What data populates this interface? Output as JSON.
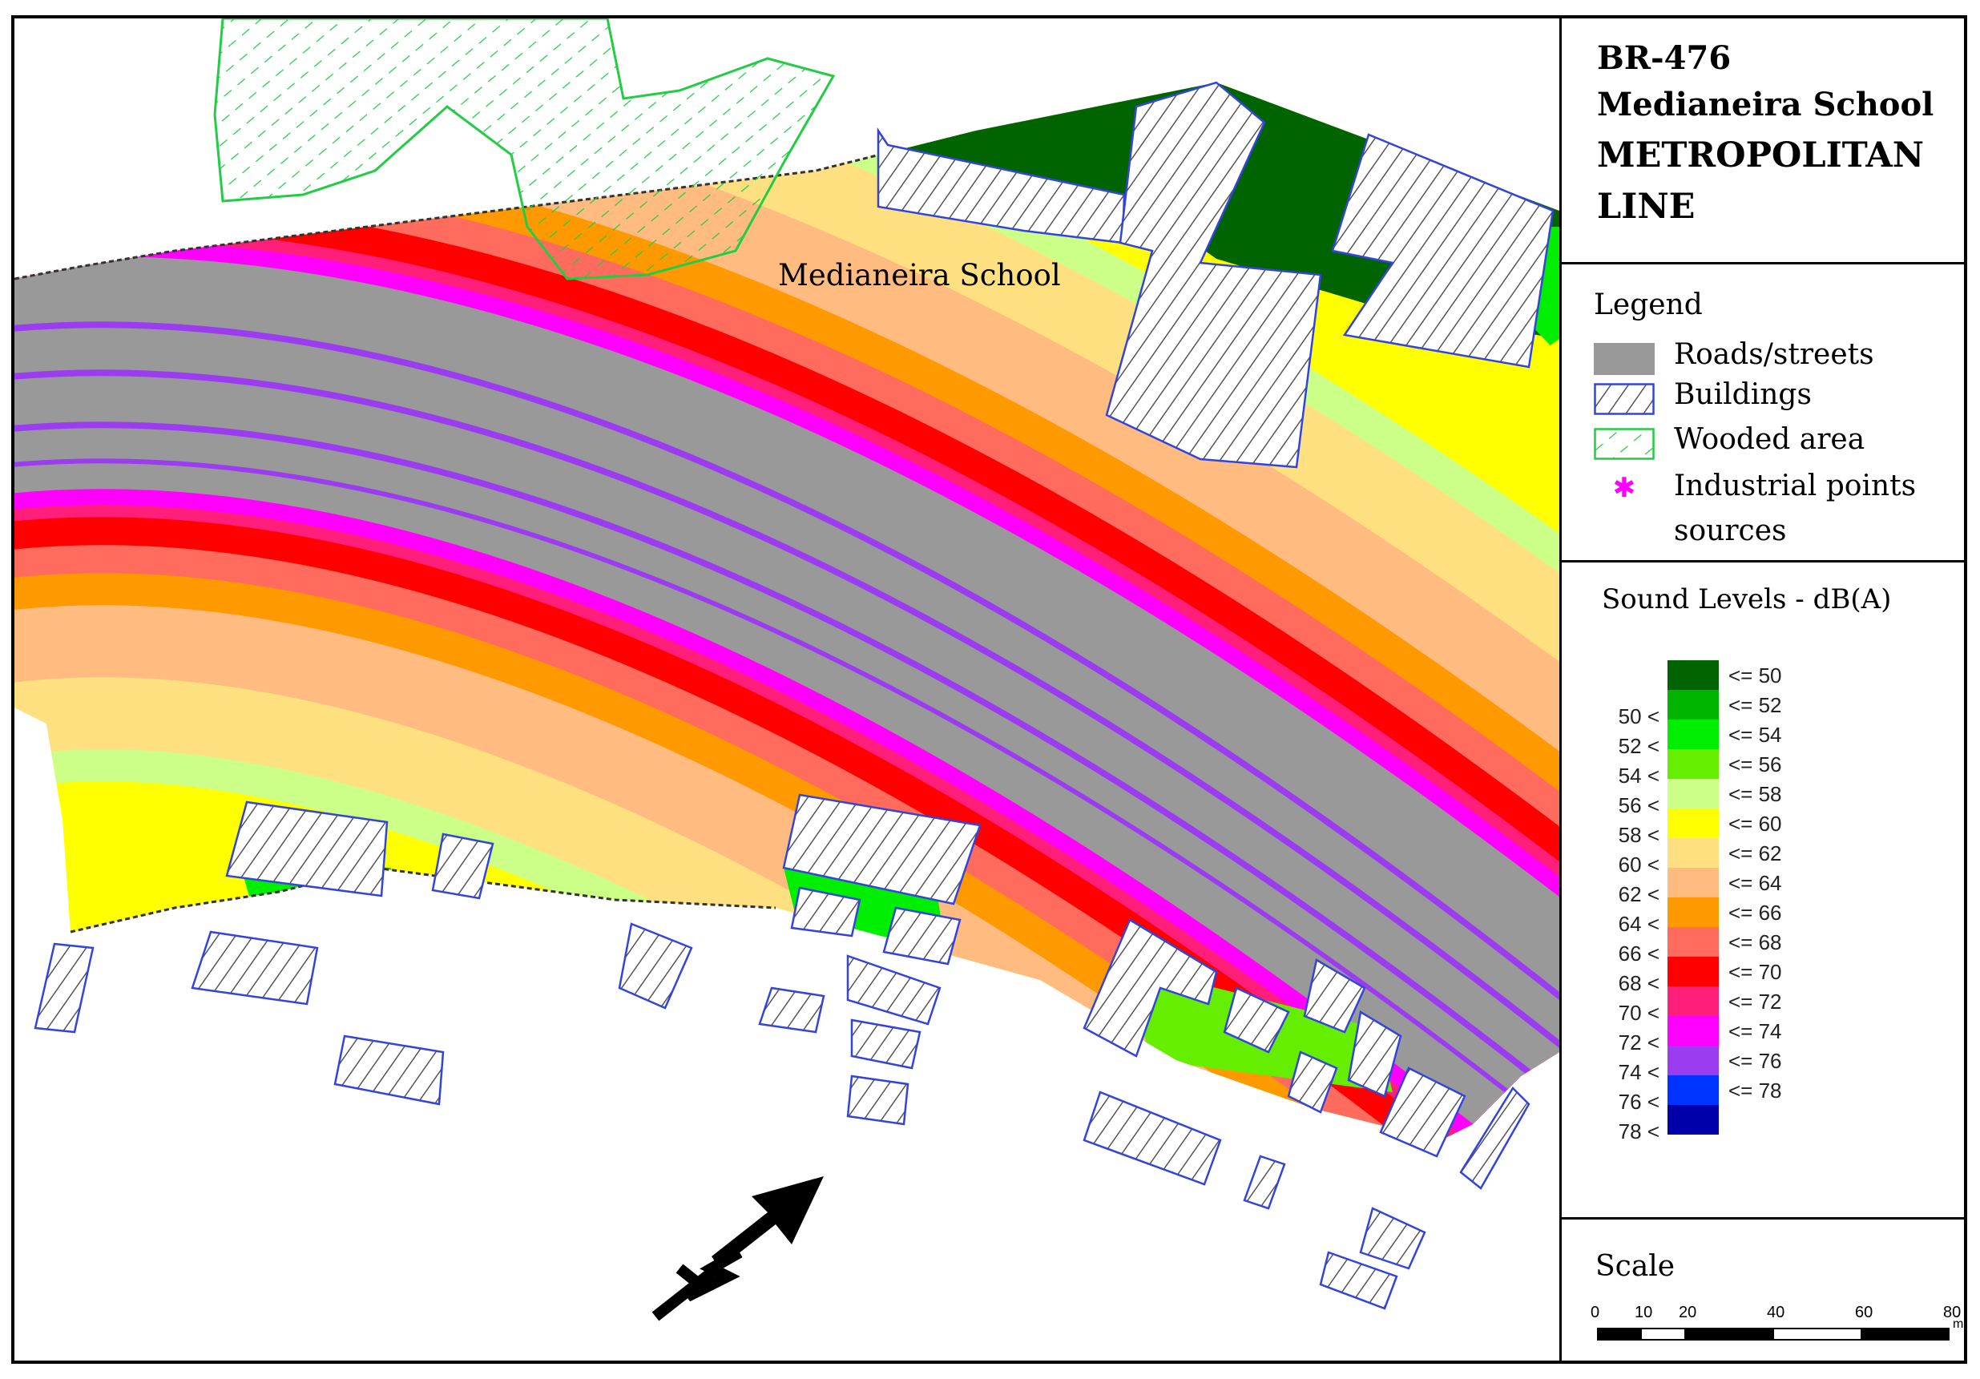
{
  "title": {
    "line1": "BR-476",
    "line2": "Medianeira School",
    "line3": "METROPOLITAN",
    "line4": "LINE"
  },
  "place_label": "Medianeira School",
  "legend": {
    "heading": "Legend",
    "items": [
      {
        "label": "Roads/streets",
        "symbol": "road",
        "color": "#999999"
      },
      {
        "label": "Buildings",
        "symbol": "hatch-blue"
      },
      {
        "label": "Wooded area",
        "symbol": "hatch-green"
      },
      {
        "label": "Industrial points",
        "symbol": "asterisk-magenta",
        "color": "#ff00ff"
      },
      {
        "label": "sources",
        "symbol": "none"
      }
    ]
  },
  "sound_levels": {
    "heading": "Sound Levels - dB(A)",
    "classes": [
      {
        "low": "",
        "high": "<= 50",
        "color": "#006400"
      },
      {
        "low": "50 <",
        "high": "<= 52",
        "color": "#00b400"
      },
      {
        "low": "52 <",
        "high": "<= 54",
        "color": "#00ee00"
      },
      {
        "low": "54 <",
        "high": "<= 56",
        "color": "#66ee00"
      },
      {
        "low": "56 <",
        "high": "<= 58",
        "color": "#ccff88"
      },
      {
        "low": "58 <",
        "high": "<= 60",
        "color": "#ffff00"
      },
      {
        "low": "60 <",
        "high": "<= 62",
        "color": "#ffe080"
      },
      {
        "low": "62 <",
        "high": "<= 64",
        "color": "#ffbb80"
      },
      {
        "low": "64 <",
        "high": "<= 66",
        "color": "#ff9900"
      },
      {
        "low": "66 <",
        "high": "<= 68",
        "color": "#ff6b5c"
      },
      {
        "low": "68 <",
        "high": "<= 70",
        "color": "#ff0000"
      },
      {
        "low": "70 <",
        "high": "<= 72",
        "color": "#ff1f7a"
      },
      {
        "low": "72 <",
        "high": "<= 74",
        "color": "#ff00ff"
      },
      {
        "low": "74 <",
        "high": "<= 76",
        "color": "#9b3cf0"
      },
      {
        "low": "76 <",
        "high": "<= 78",
        "color": "#0033ff"
      },
      {
        "low": "78 <",
        "high": "",
        "color": "#0000aa"
      }
    ]
  },
  "scale": {
    "heading": "Scale",
    "ticks": [
      "0",
      "10",
      "20",
      "40",
      "60",
      "80"
    ],
    "unit": "m"
  },
  "colors": {
    "road": "#999999",
    "building_outline": "#3344dd",
    "wooded_outline": "#22cc44"
  }
}
